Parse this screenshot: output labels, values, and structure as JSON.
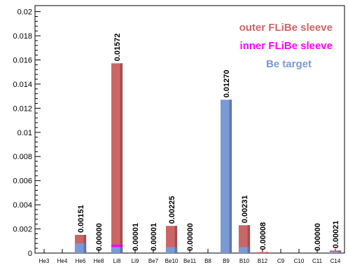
{
  "chart_data": {
    "type": "bar",
    "categories": [
      "He3",
      "He4",
      "He6",
      "He8",
      "Li8",
      "Li9",
      "Be7",
      "Be10",
      "Be11",
      "B8",
      "B9",
      "B10",
      "B12",
      "C9",
      "C10",
      "C11",
      "C14"
    ],
    "series": [
      {
        "name": "outer FLiBe sleeve",
        "values": [
          0,
          0,
          0.00151,
          0,
          0.01572,
          1e-05,
          1e-05,
          0.00225,
          0,
          0,
          0,
          0.00231,
          8e-05,
          0,
          0,
          0,
          0.00021
        ]
      },
      {
        "name": "inner FLiBe sleeve",
        "values": [
          0,
          0,
          0.0008,
          0,
          0.0007,
          0,
          0,
          0.0005,
          0,
          0,
          0,
          0.0005,
          0,
          0,
          0,
          0,
          0
        ]
      },
      {
        "name": "Be target",
        "values": [
          0,
          0,
          0.0008,
          0,
          0.0005,
          0,
          0,
          0.0005,
          0,
          0,
          0.0127,
          0.0005,
          0,
          0,
          0,
          0,
          0.0001
        ]
      }
    ],
    "data_labels": [
      {
        "category": "He6",
        "text": "0.00151"
      },
      {
        "category": "He8",
        "text": "0.00000"
      },
      {
        "category": "Li8",
        "text": "0.01572"
      },
      {
        "category": "Li9",
        "text": "0.00001"
      },
      {
        "category": "Be7",
        "text": "0.00001"
      },
      {
        "category": "Be10",
        "text": "0.00225"
      },
      {
        "category": "Be11",
        "text": "0.00000"
      },
      {
        "category": "B9",
        "text": "0.01270"
      },
      {
        "category": "B10",
        "text": "0.00231"
      },
      {
        "category": "B12",
        "text": "0.00008"
      },
      {
        "category": "C11",
        "text": "0.00000"
      },
      {
        "category": "C14",
        "text": "0.00021"
      }
    ],
    "yticks": [
      "0",
      "0.002",
      "0.004",
      "0.006",
      "0.008",
      "0.01",
      "0.012",
      "0.014",
      "0.016",
      "0.018",
      "0.02"
    ],
    "ylim": [
      0,
      0.0205
    ],
    "legend_placement": "top-right",
    "grid": false,
    "colors": {
      "outer FLiBe sleeve": "#cc6666",
      "inner FLiBe sleeve": "#ff00ff",
      "Be target": "#7a9ad6"
    }
  }
}
